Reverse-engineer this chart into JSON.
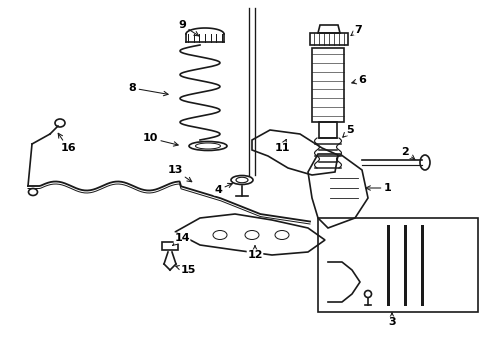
{
  "bg_color": "#ffffff",
  "line_color": "#1a1a1a",
  "label_color": "#000000",
  "fig_width": 4.9,
  "fig_height": 3.6,
  "dpi": 100,
  "font_size": 8,
  "lw": 1.2
}
